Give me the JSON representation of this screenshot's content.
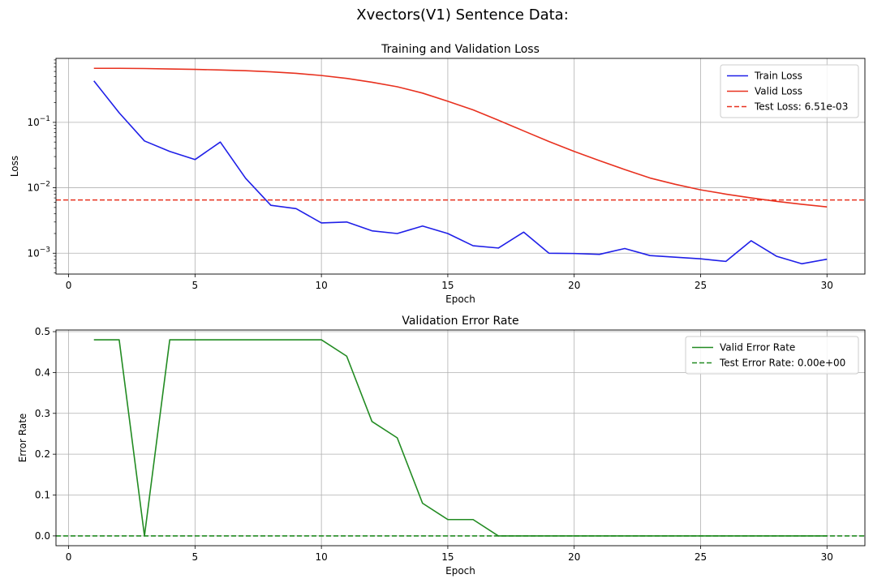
{
  "figure": {
    "suptitle": "Xvectors(V1) Sentence Data:"
  },
  "chart_data": [
    {
      "type": "line",
      "title": "Training and Validation Loss",
      "xlabel": "Epoch",
      "ylabel": "Loss",
      "yscale": "log",
      "xlim": [
        -0.5,
        31.5
      ],
      "ylim": [
        0.00048,
        0.95
      ],
      "xticks": [
        0,
        5,
        10,
        15,
        20,
        25,
        30
      ],
      "yticks": [
        {
          "value": 0.001,
          "label": "10",
          "exp": "−3"
        },
        {
          "value": 0.01,
          "label": "10",
          "exp": "−2"
        },
        {
          "value": 0.1,
          "label": "10",
          "exp": "−1"
        }
      ],
      "grid": true,
      "legend_loc": "top-right",
      "x": [
        1,
        2,
        3,
        4,
        5,
        6,
        7,
        8,
        9,
        10,
        11,
        12,
        13,
        14,
        15,
        16,
        17,
        18,
        19,
        20,
        21,
        22,
        23,
        24,
        25,
        26,
        27,
        28,
        29,
        30
      ],
      "series": [
        {
          "name": "Train Loss",
          "color": "#1f1fe8",
          "style": "solid",
          "values": [
            0.43,
            0.14,
            0.052,
            0.036,
            0.027,
            0.05,
            0.014,
            0.0054,
            0.0048,
            0.0029,
            0.003,
            0.0022,
            0.002,
            0.0026,
            0.002,
            0.0013,
            0.0012,
            0.0021,
            0.001,
            0.00099,
            0.00096,
            0.00118,
            0.00092,
            0.00087,
            0.00082,
            0.00075,
            0.00155,
            0.0009,
            0.00069,
            0.00081
          ]
        },
        {
          "name": "Valid Loss",
          "color": "#e8311f",
          "style": "solid",
          "values": [
            0.67,
            0.67,
            0.665,
            0.655,
            0.645,
            0.632,
            0.616,
            0.593,
            0.562,
            0.52,
            0.47,
            0.41,
            0.35,
            0.28,
            0.21,
            0.155,
            0.108,
            0.074,
            0.051,
            0.036,
            0.026,
            0.019,
            0.0141,
            0.0113,
            0.0093,
            0.008,
            0.007,
            0.0062,
            0.0056,
            0.0051
          ]
        }
      ],
      "hlines": [
        {
          "name": "Test Loss: 6.51e-03",
          "value": 0.00651,
          "color": "#e8311f",
          "style": "dashed"
        }
      ]
    },
    {
      "type": "line",
      "title": "Validation Error Rate",
      "xlabel": "Epoch",
      "ylabel": "Error Rate",
      "xlim": [
        -0.5,
        31.5
      ],
      "ylim": [
        -0.024,
        0.504
      ],
      "xticks": [
        0,
        5,
        10,
        15,
        20,
        25,
        30
      ],
      "yticks": [
        {
          "value": 0.0,
          "label": "0.0"
        },
        {
          "value": 0.1,
          "label": "0.1"
        },
        {
          "value": 0.2,
          "label": "0.2"
        },
        {
          "value": 0.3,
          "label": "0.3"
        },
        {
          "value": 0.4,
          "label": "0.4"
        },
        {
          "value": 0.5,
          "label": "0.5"
        }
      ],
      "grid": true,
      "legend_loc": "top-right",
      "x": [
        1,
        2,
        3,
        4,
        5,
        6,
        7,
        8,
        9,
        10,
        11,
        12,
        13,
        14,
        15,
        16,
        17,
        18,
        19,
        20,
        21,
        22,
        23,
        24,
        25,
        26,
        27,
        28,
        29,
        30
      ],
      "series": [
        {
          "name": "Valid Error Rate",
          "color": "#228b22",
          "style": "solid",
          "values": [
            0.48,
            0.48,
            0.0,
            0.48,
            0.48,
            0.48,
            0.48,
            0.48,
            0.48,
            0.48,
            0.44,
            0.28,
            0.24,
            0.08,
            0.04,
            0.04,
            0.0,
            0.0,
            0.0,
            0.0,
            0.0,
            0.0,
            0.0,
            0.0,
            0.0,
            0.0,
            0.0,
            0.0,
            0.0,
            0.0
          ]
        }
      ],
      "hlines": [
        {
          "name": "Test Error Rate: 0.00e+00",
          "value": 0.0,
          "color": "#228b22",
          "style": "dashed"
        }
      ]
    }
  ]
}
